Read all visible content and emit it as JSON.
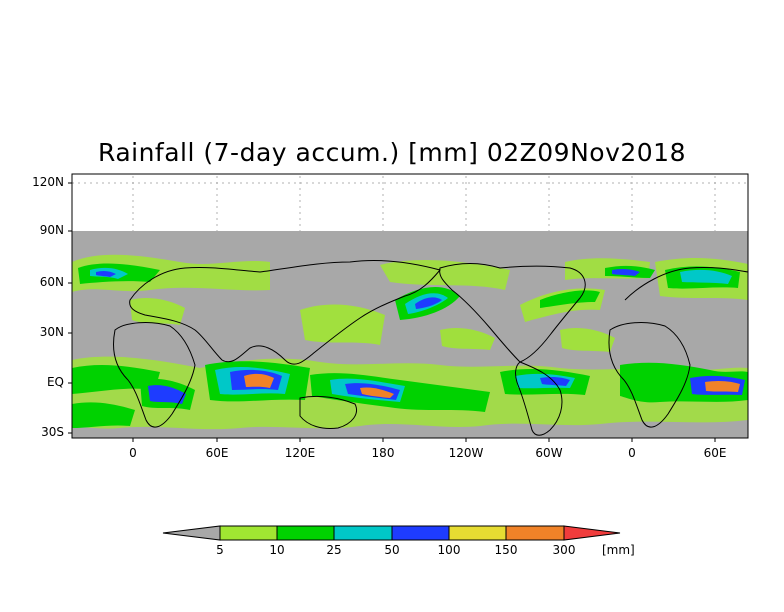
{
  "title": "Rainfall (7-day accum.) [mm] 02Z09Nov2018",
  "map": {
    "lat_labels": [
      "120N",
      "90N",
      "60N",
      "30N",
      "EQ",
      "30S"
    ],
    "lon_labels": [
      "0",
      "60E",
      "120E",
      "180",
      "120W",
      "60W",
      "0",
      "60E"
    ],
    "colors": {
      "no_data": "#a8a8a8",
      "land_outline": "#000000"
    }
  },
  "colorbar": {
    "unit": "[mm]",
    "thresholds": [
      "5",
      "10",
      "25",
      "50",
      "100",
      "150",
      "300"
    ],
    "colors": [
      "#a8a8a8",
      "#a0e632",
      "#00d200",
      "#00c8c8",
      "#1e3cff",
      "#e6dc32",
      "#f08228",
      "#f03c3c"
    ]
  }
}
